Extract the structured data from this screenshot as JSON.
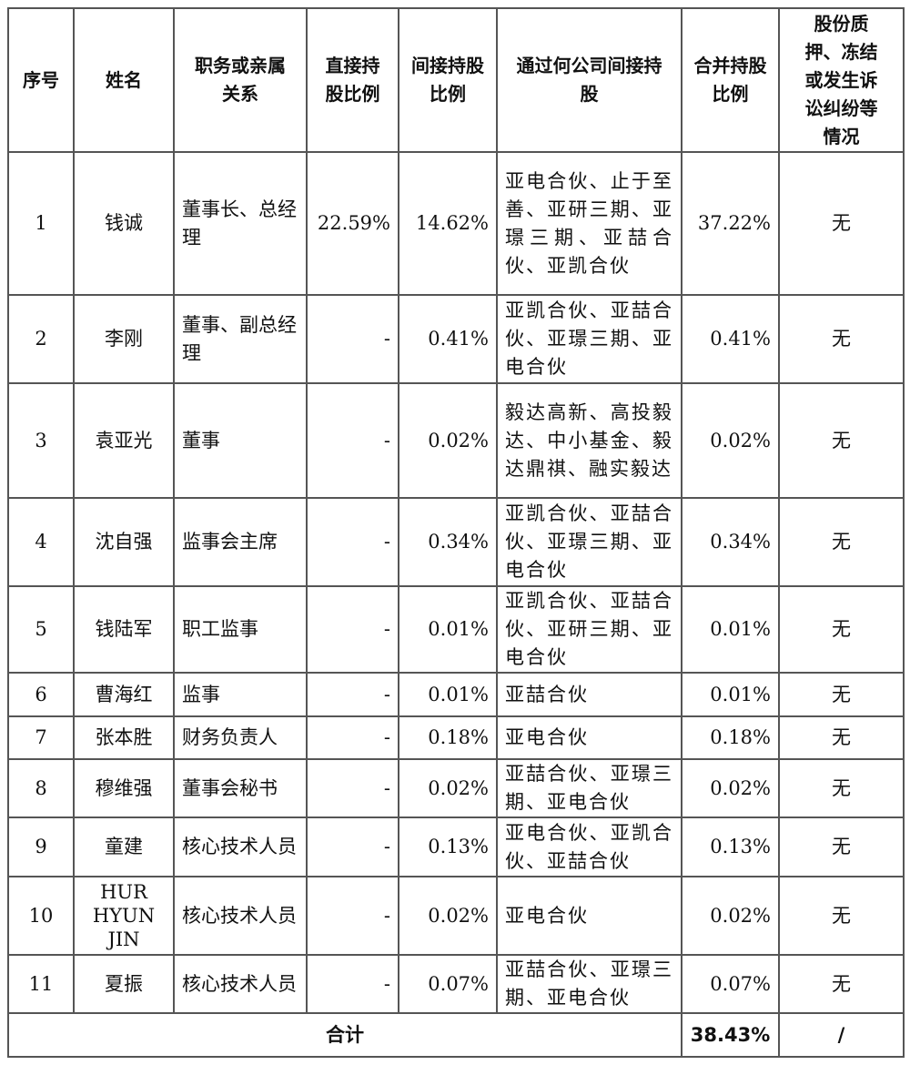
{
  "headers": [
    "序号",
    "姓名",
    "职务或亲属关系",
    "直接持股比例",
    "间接持股比例",
    "通过何公司间接持股",
    "合并持股比例",
    "股份质押、冻结或发生诉讼纠纷等情况"
  ],
  "rows": [
    {
      "no": "1",
      "name": "钱诚",
      "role": "董事长、总经理",
      "direct": "22.59%",
      "indirect": "14.62%",
      "via": "亚电合伙、止于至善、亚研三期、亚璟三期、亚喆合伙、亚凯合伙",
      "total": "37.22%",
      "pledge": "无"
    },
    {
      "no": "2",
      "name": "李刚",
      "role": "董事、副总经理",
      "direct": "-",
      "indirect": "0.41%",
      "via": "亚凯合伙、亚喆合伙、亚璟三期、亚电合伙",
      "total": "0.41%",
      "pledge": "无"
    },
    {
      "no": "3",
      "name": "袁亚光",
      "role": "董事",
      "direct": "-",
      "indirect": "0.02%",
      "via": "毅达高新、高投毅达、中小基金、毅达鼎祺、融实毅达",
      "total": "0.02%",
      "pledge": "无"
    },
    {
      "no": "4",
      "name": "沈自强",
      "role": "监事会主席",
      "direct": "-",
      "indirect": "0.34%",
      "via": "亚凯合伙、亚喆合伙、亚璟三期、亚电合伙",
      "total": "0.34%",
      "pledge": "无"
    },
    {
      "no": "5",
      "name": "钱陆军",
      "role": "职工监事",
      "direct": "-",
      "indirect": "0.01%",
      "via": "亚凯合伙、亚喆合伙、亚研三期、亚电合伙",
      "total": "0.01%",
      "pledge": "无"
    },
    {
      "no": "6",
      "name": "曹海红",
      "role": "监事",
      "direct": "-",
      "indirect": "0.01%",
      "via": "亚喆合伙",
      "total": "0.01%",
      "pledge": "无"
    },
    {
      "no": "7",
      "name": "张本胜",
      "role": "财务负责人",
      "direct": "-",
      "indirect": "0.18%",
      "via": "亚电合伙",
      "total": "0.18%",
      "pledge": "无"
    },
    {
      "no": "8",
      "name": "穆维强",
      "role": "董事会秘书",
      "direct": "-",
      "indirect": "0.02%",
      "via": "亚喆合伙、亚璟三期、亚电合伙",
      "total": "0.02%",
      "pledge": "无"
    },
    {
      "no": "9",
      "name": "童建",
      "role": "核心技术人员",
      "direct": "-",
      "indirect": "0.13%",
      "via": "亚电合伙、亚凯合伙、亚喆合伙",
      "total": "0.13%",
      "pledge": "无"
    },
    {
      "no": "10",
      "name": "HUR HYUN JIN",
      "role": "核心技术人员",
      "direct": "-",
      "indirect": "0.02%",
      "via": "亚电合伙",
      "total": "0.02%",
      "pledge": "无"
    },
    {
      "no": "11",
      "name": "夏振",
      "role": "核心技术人员",
      "direct": "-",
      "indirect": "0.07%",
      "via": "亚喆合伙、亚璟三期、亚电合伙",
      "total": "0.07%",
      "pledge": "无"
    }
  ],
  "footer": {
    "label": "合计",
    "total": "38.43%",
    "pledge": "/"
  }
}
